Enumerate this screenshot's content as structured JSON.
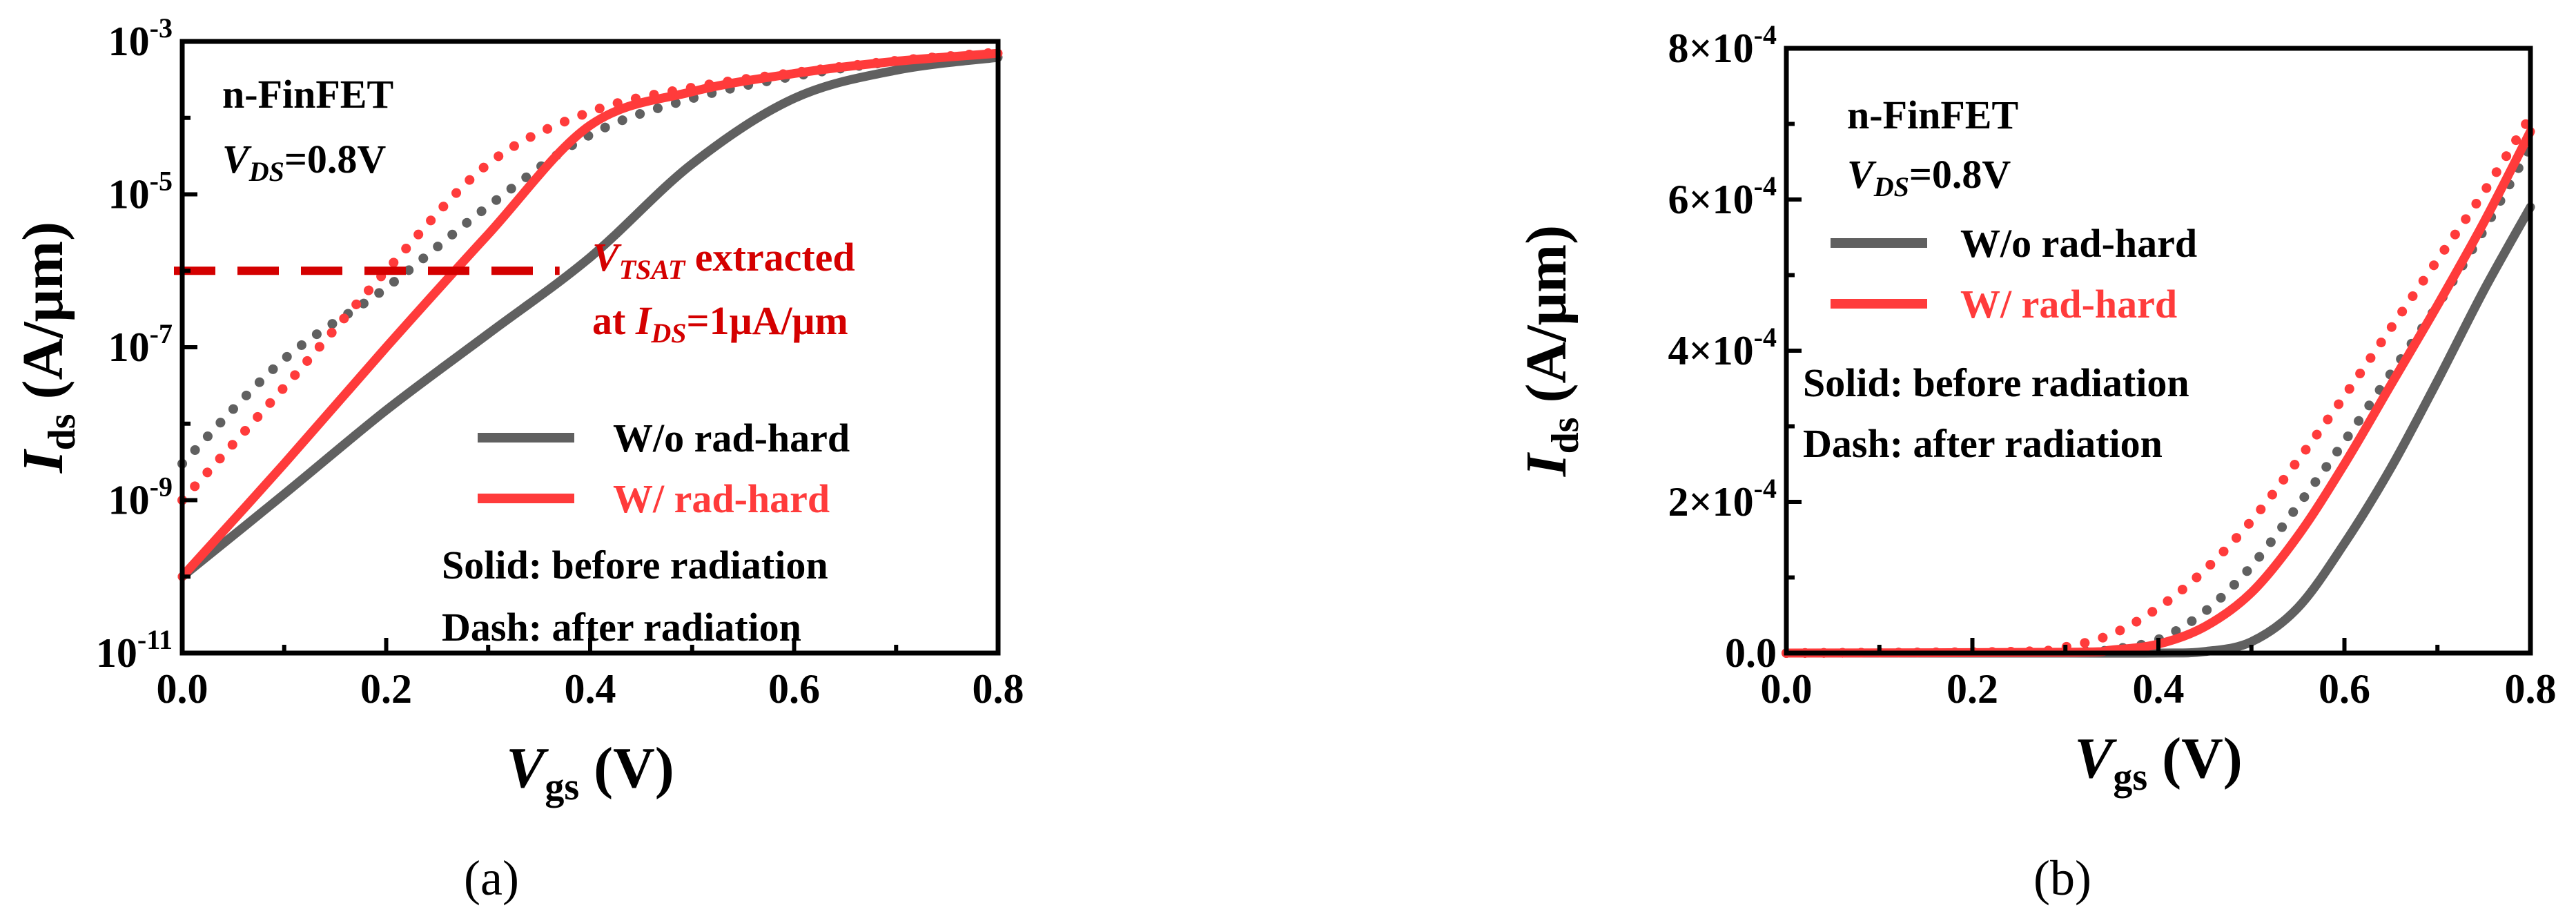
{
  "panels": [
    {
      "id": "a",
      "caption": "(a)",
      "chart_data": {
        "type": "line",
        "scale_y": "log",
        "xlabel": "Vgs (V)",
        "ylabel": "Ids (A/μm)",
        "xlim": [
          0,
          0.8
        ],
        "ylim": [
          1e-11,
          0.001
        ],
        "x_ticks": [
          "0.0",
          "0.2",
          "0.4",
          "0.6",
          "0.8"
        ],
        "y_ticks": [
          "10^-11",
          "10^-9",
          "10^-7",
          "10^-5",
          "10^-3"
        ],
        "series": [
          {
            "name": "W/o rad-hard",
            "condition": "before radiation",
            "style": "solid",
            "color": "#606060",
            "x": [
              0.0,
              0.1,
              0.2,
              0.3,
              0.4,
              0.5,
              0.6,
              0.7,
              0.8
            ],
            "y": [
              1e-10,
              1.2e-09,
              1.5e-08,
              1.5e-07,
              1.5e-06,
              2.5e-05,
              0.00018,
              0.00042,
              0.00062
            ]
          },
          {
            "name": "W/o rad-hard",
            "condition": "after radiation",
            "style": "dotted",
            "color": "#606060",
            "x": [
              0.0,
              0.1,
              0.2,
              0.3,
              0.4,
              0.5,
              0.6,
              0.7,
              0.8
            ],
            "y": [
              3e-09,
              7e-08,
              6e-07,
              7e-06,
              6e-05,
              0.00018,
              0.00035,
              0.00055,
              0.0007
            ]
          },
          {
            "name": "W/ rad-hard",
            "condition": "before radiation",
            "style": "solid",
            "color": "#ff3b3b",
            "x": [
              0.0,
              0.1,
              0.2,
              0.3,
              0.4,
              0.5,
              0.6,
              0.7,
              0.8
            ],
            "y": [
              1e-10,
              3e-09,
              1e-07,
              3e-06,
              8e-05,
              0.00022,
              0.00038,
              0.00055,
              0.0007
            ]
          },
          {
            "name": "W/ rad-hard",
            "condition": "after radiation",
            "style": "dotted",
            "color": "#ff3b3b",
            "x": [
              0.0,
              0.1,
              0.2,
              0.3,
              0.4,
              0.5,
              0.6,
              0.7,
              0.8
            ],
            "y": [
              1e-09,
              3e-08,
              1e-06,
              2.5e-05,
              0.00012,
              0.00025,
              0.00039,
              0.00056,
              0.00072
            ]
          }
        ],
        "reference_line": {
          "y": 1e-06,
          "x_range": [
            0.0,
            0.37
          ],
          "color": "#d40000",
          "style": "dashed"
        },
        "annotations": {
          "device": "n-FinFET",
          "vds": "=0.8V",
          "vtsat_line1_suffix": " extracted",
          "vtsat_line2_prefix": "at ",
          "vtsat_line2_suffix": "=1μA/μm",
          "solid_note": "Solid: before radiation",
          "dash_note": "Dash: after radiation"
        },
        "legend": [
          "W/o rad-hard",
          "W/ rad-hard"
        ]
      }
    },
    {
      "id": "b",
      "caption": "(b)",
      "chart_data": {
        "type": "line",
        "scale_y": "linear",
        "xlabel": "Vgs (V)",
        "ylabel": "Ids (A/μm)",
        "xlim": [
          0,
          0.8
        ],
        "ylim": [
          0,
          0.0008
        ],
        "x_ticks": [
          "0.0",
          "0.2",
          "0.4",
          "0.6",
          "0.8"
        ],
        "y_ticks": [
          "0.0",
          "2×10^-4",
          "4×10^-4",
          "6×10^-4",
          "8×10^-4"
        ],
        "series": [
          {
            "name": "W/o rad-hard",
            "condition": "before radiation",
            "style": "solid",
            "color": "#606060",
            "x": [
              0.0,
              0.3,
              0.4,
              0.45,
              0.5,
              0.55,
              0.6,
              0.65,
              0.7,
              0.75,
              0.8
            ],
            "y": [
              0,
              0,
              0,
              2e-06,
              1.5e-05,
              6e-05,
              0.000145,
              0.000245,
              0.00036,
              0.00048,
              0.00059
            ]
          },
          {
            "name": "W/o rad-hard",
            "condition": "after radiation",
            "style": "dotted",
            "color": "#606060",
            "x": [
              0.0,
              0.3,
              0.35,
              0.4,
              0.45,
              0.5,
              0.55,
              0.6,
              0.65,
              0.7,
              0.75,
              0.8
            ],
            "y": [
              0,
              2e-06,
              5e-06,
              1.8e-05,
              5.5e-05,
              0.000115,
              0.000195,
              0.00028,
              0.00037,
              0.00046,
              0.00056,
              0.00067
            ]
          },
          {
            "name": "W/ rad-hard",
            "condition": "before radiation",
            "style": "solid",
            "color": "#ff3b3b",
            "x": [
              0.0,
              0.3,
              0.35,
              0.4,
              0.45,
              0.5,
              0.55,
              0.6,
              0.65,
              0.7,
              0.75,
              0.8
            ],
            "y": [
              0,
              1e-06,
              4e-06,
              1.2e-05,
              3.5e-05,
              8e-05,
              0.000155,
              0.00025,
              0.000355,
              0.00046,
              0.00057,
              0.00069
            ]
          },
          {
            "name": "W/ rad-hard",
            "condition": "after radiation",
            "style": "dotted",
            "color": "#ff3b3b",
            "x": [
              0.0,
              0.25,
              0.3,
              0.35,
              0.4,
              0.45,
              0.5,
              0.55,
              0.6,
              0.65,
              0.7,
              0.75,
              0.8
            ],
            "y": [
              0,
              2e-06,
              8e-06,
              2.5e-05,
              6e-05,
              0.00011,
              0.000175,
              0.000255,
              0.00034,
              0.00043,
              0.00052,
              0.00061,
              0.00071
            ]
          }
        ],
        "annotations": {
          "device": "n-FinFET",
          "vds": "=0.8V",
          "solid_note": "Solid: before radiation",
          "dash_note": "Dash: after radiation"
        },
        "legend": [
          "W/o rad-hard",
          "W/ rad-hard"
        ]
      }
    }
  ]
}
